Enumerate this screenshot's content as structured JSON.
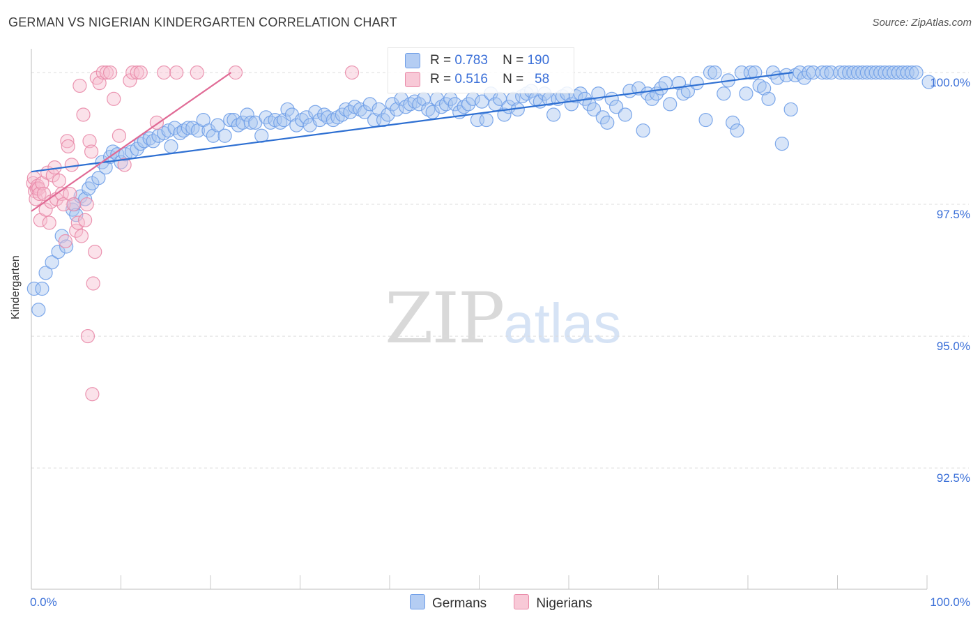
{
  "chart_data": {
    "type": "scatter",
    "title": "GERMAN VS NIGERIAN KINDERGARTEN CORRELATION CHART",
    "source": "Source: ZipAtlas.com",
    "ylabel": "Kindergarten",
    "xlabel": "",
    "xlim": [
      0,
      100
    ],
    "ylim": [
      90.2,
      100.45
    ],
    "x_tick_labels": [
      "0.0%",
      "100.0%"
    ],
    "y_ticks": [
      100.0,
      97.5,
      95.0,
      92.5
    ],
    "y_tick_labels": [
      "100.0%",
      "97.5%",
      "95.0%",
      "92.5%"
    ],
    "watermark": {
      "zip": "ZIP",
      "atlas": "atlas"
    },
    "legend": [
      {
        "r_label": "R =",
        "r_value": "0.783",
        "n_label": "N =",
        "n_value": "190"
      },
      {
        "r_label": "R =",
        "r_value": "0.516",
        "n_label": "N =",
        "n_value": "58"
      }
    ],
    "series": [
      {
        "name": "Germans",
        "color": "#6f9ee8",
        "fill": "#a8c6f0",
        "trend": {
          "x": [
            0,
            85
          ],
          "y": [
            98.12,
            100.0
          ]
        },
        "points": [
          [
            0.3,
            95.9
          ],
          [
            0.8,
            95.5
          ],
          [
            1.2,
            95.9
          ],
          [
            1.6,
            96.2
          ],
          [
            2.3,
            96.4
          ],
          [
            3.0,
            96.6
          ],
          [
            3.4,
            96.9
          ],
          [
            3.9,
            96.7
          ],
          [
            4.6,
            97.4
          ],
          [
            4.8,
            97.5
          ],
          [
            5.0,
            97.3
          ],
          [
            5.5,
            97.65
          ],
          [
            6.0,
            97.6
          ],
          [
            6.4,
            97.8
          ],
          [
            6.8,
            97.9
          ],
          [
            7.5,
            98.0
          ],
          [
            7.9,
            98.3
          ],
          [
            8.3,
            98.2
          ],
          [
            8.8,
            98.4
          ],
          [
            9.1,
            98.5
          ],
          [
            9.6,
            98.45
          ],
          [
            10.0,
            98.3
          ],
          [
            10.5,
            98.45
          ],
          [
            11.2,
            98.5
          ],
          [
            11.8,
            98.55
          ],
          [
            12.2,
            98.65
          ],
          [
            12.6,
            98.7
          ],
          [
            13.2,
            98.75
          ],
          [
            13.6,
            98.7
          ],
          [
            14.2,
            98.8
          ],
          [
            14.8,
            98.85
          ],
          [
            15.3,
            98.9
          ],
          [
            15.6,
            98.6
          ],
          [
            16.0,
            98.95
          ],
          [
            16.6,
            98.85
          ],
          [
            17.0,
            98.9
          ],
          [
            17.5,
            98.95
          ],
          [
            18.0,
            98.95
          ],
          [
            18.6,
            98.9
          ],
          [
            19.2,
            99.1
          ],
          [
            19.8,
            98.9
          ],
          [
            20.3,
            98.8
          ],
          [
            20.8,
            99.0
          ],
          [
            21.6,
            98.8
          ],
          [
            22.2,
            99.1
          ],
          [
            22.6,
            99.1
          ],
          [
            23.1,
            99.0
          ],
          [
            23.6,
            99.05
          ],
          [
            24.1,
            99.2
          ],
          [
            24.5,
            99.05
          ],
          [
            25.0,
            99.05
          ],
          [
            25.7,
            98.8
          ],
          [
            26.2,
            99.15
          ],
          [
            26.7,
            99.05
          ],
          [
            27.2,
            99.1
          ],
          [
            27.8,
            99.05
          ],
          [
            28.2,
            99.1
          ],
          [
            28.6,
            99.3
          ],
          [
            29.1,
            99.2
          ],
          [
            29.6,
            99.0
          ],
          [
            30.2,
            99.1
          ],
          [
            30.7,
            99.15
          ],
          [
            31.1,
            99.0
          ],
          [
            31.7,
            99.25
          ],
          [
            32.2,
            99.1
          ],
          [
            32.7,
            99.2
          ],
          [
            33.1,
            99.15
          ],
          [
            33.7,
            99.1
          ],
          [
            34.2,
            99.15
          ],
          [
            34.7,
            99.2
          ],
          [
            35.1,
            99.3
          ],
          [
            35.6,
            99.25
          ],
          [
            36.1,
            99.35
          ],
          [
            36.7,
            99.3
          ],
          [
            37.2,
            99.25
          ],
          [
            37.8,
            99.4
          ],
          [
            38.3,
            99.1
          ],
          [
            38.8,
            99.3
          ],
          [
            39.3,
            99.1
          ],
          [
            39.8,
            99.2
          ],
          [
            40.3,
            99.4
          ],
          [
            40.8,
            99.3
          ],
          [
            41.3,
            99.5
          ],
          [
            41.8,
            99.35
          ],
          [
            42.3,
            99.4
          ],
          [
            42.8,
            99.45
          ],
          [
            43.3,
            99.4
          ],
          [
            43.8,
            99.5
          ],
          [
            44.3,
            99.3
          ],
          [
            44.8,
            99.25
          ],
          [
            45.3,
            99.5
          ],
          [
            45.8,
            99.35
          ],
          [
            46.3,
            99.4
          ],
          [
            46.8,
            99.5
          ],
          [
            47.3,
            99.4
          ],
          [
            47.8,
            99.25
          ],
          [
            48.3,
            99.35
          ],
          [
            48.8,
            99.4
          ],
          [
            49.3,
            99.5
          ],
          [
            49.8,
            99.1
          ],
          [
            50.3,
            99.45
          ],
          [
            50.8,
            99.1
          ],
          [
            51.3,
            99.6
          ],
          [
            51.8,
            99.4
          ],
          [
            52.3,
            99.5
          ],
          [
            52.8,
            99.2
          ],
          [
            53.3,
            99.35
          ],
          [
            53.8,
            99.5
          ],
          [
            54.3,
            99.3
          ],
          [
            54.8,
            99.55
          ],
          [
            55.3,
            99.6
          ],
          [
            55.8,
            99.65
          ],
          [
            56.3,
            99.5
          ],
          [
            56.8,
            99.45
          ],
          [
            57.3,
            99.6
          ],
          [
            57.8,
            99.5
          ],
          [
            58.3,
            99.2
          ],
          [
            58.8,
            99.5
          ],
          [
            59.3,
            99.55
          ],
          [
            59.8,
            99.6
          ],
          [
            60.3,
            99.4
          ],
          [
            60.8,
            99.55
          ],
          [
            61.3,
            99.6
          ],
          [
            61.8,
            99.5
          ],
          [
            62.3,
            99.4
          ],
          [
            62.8,
            99.3
          ],
          [
            63.3,
            99.6
          ],
          [
            63.8,
            99.15
          ],
          [
            64.3,
            99.05
          ],
          [
            64.8,
            99.5
          ],
          [
            65.3,
            99.35
          ],
          [
            66.3,
            99.2
          ],
          [
            66.8,
            99.65
          ],
          [
            67.8,
            99.7
          ],
          [
            68.3,
            98.9
          ],
          [
            68.8,
            99.6
          ],
          [
            69.3,
            99.5
          ],
          [
            69.8,
            99.6
          ],
          [
            70.3,
            99.7
          ],
          [
            70.8,
            99.8
          ],
          [
            71.3,
            99.4
          ],
          [
            72.3,
            99.8
          ],
          [
            72.8,
            99.6
          ],
          [
            73.3,
            99.65
          ],
          [
            74.3,
            99.8
          ],
          [
            75.3,
            99.1
          ],
          [
            75.8,
            100.0
          ],
          [
            76.3,
            100.0
          ],
          [
            77.3,
            99.6
          ],
          [
            77.8,
            99.85
          ],
          [
            78.3,
            99.05
          ],
          [
            78.8,
            98.9
          ],
          [
            79.3,
            100.0
          ],
          [
            79.8,
            99.6
          ],
          [
            80.3,
            100.0
          ],
          [
            80.8,
            100.0
          ],
          [
            81.3,
            99.75
          ],
          [
            81.8,
            99.7
          ],
          [
            82.3,
            99.5
          ],
          [
            82.8,
            100.0
          ],
          [
            83.3,
            99.9
          ],
          [
            83.8,
            98.65
          ],
          [
            84.3,
            99.95
          ],
          [
            84.8,
            99.3
          ],
          [
            85.3,
            99.95
          ],
          [
            85.8,
            100.0
          ],
          [
            86.3,
            99.9
          ],
          [
            86.8,
            100.0
          ],
          [
            87.3,
            100.0
          ],
          [
            88.3,
            100.0
          ],
          [
            88.8,
            100.0
          ],
          [
            89.3,
            100.0
          ],
          [
            90.3,
            100.0
          ],
          [
            90.8,
            100.0
          ],
          [
            91.3,
            100.0
          ],
          [
            91.8,
            100.0
          ],
          [
            92.3,
            100.0
          ],
          [
            92.8,
            100.0
          ],
          [
            93.3,
            100.0
          ],
          [
            93.8,
            100.0
          ],
          [
            94.3,
            100.0
          ],
          [
            94.8,
            100.0
          ],
          [
            95.3,
            100.0
          ],
          [
            95.8,
            100.0
          ],
          [
            96.3,
            100.0
          ],
          [
            96.8,
            100.0
          ],
          [
            97.3,
            100.0
          ],
          [
            97.8,
            100.0
          ],
          [
            98.3,
            100.0
          ],
          [
            98.8,
            100.0
          ],
          [
            100.2,
            99.82
          ]
        ]
      },
      {
        "name": "Nigerians",
        "color": "#e98aa8",
        "fill": "#f6bfd0",
        "trend": {
          "x": [
            0,
            22.3
          ],
          "y": [
            97.37,
            100.0
          ]
        },
        "points": [
          [
            0.2,
            97.9
          ],
          [
            0.3,
            98.0
          ],
          [
            0.4,
            97.75
          ],
          [
            0.5,
            97.6
          ],
          [
            0.6,
            97.8
          ],
          [
            0.7,
            97.85
          ],
          [
            0.8,
            97.8
          ],
          [
            0.9,
            97.7
          ],
          [
            1.0,
            97.2
          ],
          [
            1.2,
            97.9
          ],
          [
            1.4,
            97.7
          ],
          [
            1.6,
            97.4
          ],
          [
            1.8,
            98.1
          ],
          [
            2.0,
            97.15
          ],
          [
            2.2,
            97.55
          ],
          [
            2.4,
            98.05
          ],
          [
            2.6,
            98.2
          ],
          [
            2.8,
            97.6
          ],
          [
            3.1,
            97.95
          ],
          [
            3.4,
            97.7
          ],
          [
            3.6,
            97.5
          ],
          [
            3.8,
            96.8
          ],
          [
            4.0,
            98.7
          ],
          [
            4.1,
            98.6
          ],
          [
            4.3,
            97.7
          ],
          [
            4.5,
            98.25
          ],
          [
            4.7,
            97.5
          ],
          [
            5.0,
            97.0
          ],
          [
            5.2,
            97.15
          ],
          [
            5.4,
            99.75
          ],
          [
            5.6,
            96.9
          ],
          [
            5.8,
            99.2
          ],
          [
            6.0,
            97.2
          ],
          [
            6.2,
            97.5
          ],
          [
            6.3,
            95.0
          ],
          [
            6.5,
            98.7
          ],
          [
            6.7,
            98.5
          ],
          [
            6.8,
            93.9
          ],
          [
            6.9,
            96.0
          ],
          [
            7.1,
            96.6
          ],
          [
            7.3,
            99.9
          ],
          [
            7.6,
            99.8
          ],
          [
            8.0,
            100.0
          ],
          [
            8.4,
            100.0
          ],
          [
            8.8,
            100.0
          ],
          [
            9.2,
            99.5
          ],
          [
            9.8,
            98.8
          ],
          [
            10.4,
            98.25
          ],
          [
            11.0,
            99.85
          ],
          [
            11.3,
            100.0
          ],
          [
            11.8,
            100.0
          ],
          [
            12.2,
            100.0
          ],
          [
            14.0,
            99.05
          ],
          [
            14.8,
            100.0
          ],
          [
            16.2,
            100.0
          ],
          [
            18.5,
            100.0
          ],
          [
            22.8,
            100.0
          ],
          [
            35.8,
            100.0
          ]
        ]
      }
    ]
  }
}
